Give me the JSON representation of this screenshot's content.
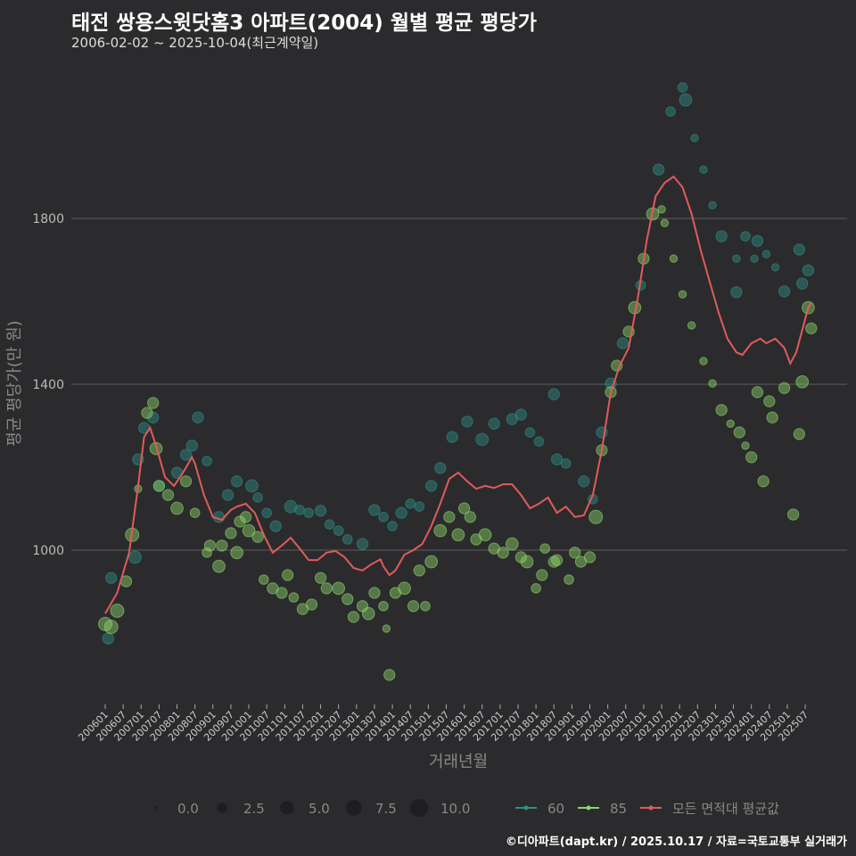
{
  "chart_data": {
    "type": "scatter",
    "title": "태전 쌍용스윗닷홈3 아파트(2004) 월별 평균 평당가",
    "subtitle": "2006-02-02 ~ 2025-10-04(최근계약일)",
    "xlabel": "거래년월",
    "ylabel": "평균 평당가(만 원)",
    "x_unit": "months since 2006-01",
    "xlim": [
      -10,
      248
    ],
    "ylim": [
      620,
      2160
    ],
    "yticks": [
      1000,
      1400,
      1800
    ],
    "ytick_labels": [
      "1000",
      "1400",
      "1800"
    ],
    "xtick_labels": [
      "200601",
      "200607",
      "200701",
      "200707",
      "200801",
      "200807",
      "200901",
      "200907",
      "201001",
      "201007",
      "201101",
      "201107",
      "201201",
      "201207",
      "201301",
      "201307",
      "201401",
      "201407",
      "201501",
      "201507",
      "201601",
      "201607",
      "201701",
      "201707",
      "201801",
      "201807",
      "201901",
      "201907",
      "202001",
      "202007",
      "202101",
      "202107",
      "202201",
      "202207",
      "202301",
      "202307",
      "202401",
      "202407",
      "202501",
      "202507"
    ],
    "grid": true,
    "size_legend": {
      "values": [
        0.0,
        2.5,
        5.0,
        7.5,
        10.0
      ],
      "labels": [
        "0.0",
        "2.5",
        "5.0",
        "7.5",
        "10.0"
      ]
    },
    "series": [
      {
        "name": "60",
        "color": "#2f8f86",
        "points": [
          [
            1,
            787,
            3
          ],
          [
            2,
            933,
            3
          ],
          [
            10,
            983,
            4
          ],
          [
            11,
            1219,
            3
          ],
          [
            13,
            1295,
            3
          ],
          [
            16,
            1320,
            3
          ],
          [
            18,
            1155,
            3
          ],
          [
            24,
            1187,
            3
          ],
          [
            27,
            1230,
            3
          ],
          [
            29,
            1252,
            3
          ],
          [
            31,
            1320,
            3
          ],
          [
            34,
            1215,
            2
          ],
          [
            38,
            1080,
            3
          ],
          [
            41,
            1133,
            3
          ],
          [
            44,
            1166,
            3
          ],
          [
            49,
            1155,
            4
          ],
          [
            51,
            1127,
            2
          ],
          [
            54,
            1090,
            2
          ],
          [
            57,
            1058,
            3
          ],
          [
            62,
            1105,
            4
          ],
          [
            65,
            1097,
            2
          ],
          [
            68,
            1090,
            2
          ],
          [
            72,
            1095,
            3
          ],
          [
            75,
            1062,
            2
          ],
          [
            78,
            1047,
            2
          ],
          [
            81,
            1026,
            2
          ],
          [
            86,
            1015,
            3
          ],
          [
            90,
            1097,
            3
          ],
          [
            93,
            1080,
            2
          ],
          [
            96,
            1058,
            2
          ],
          [
            99,
            1090,
            3
          ],
          [
            102,
            1112,
            2
          ],
          [
            105,
            1105,
            2
          ],
          [
            109,
            1155,
            3
          ],
          [
            112,
            1198,
            3
          ],
          [
            116,
            1273,
            3
          ],
          [
            121,
            1310,
            3
          ],
          [
            126,
            1267,
            4
          ],
          [
            130,
            1305,
            3
          ],
          [
            136,
            1316,
            3
          ],
          [
            139,
            1327,
            3
          ],
          [
            142,
            1284,
            2
          ],
          [
            145,
            1262,
            2
          ],
          [
            150,
            1376,
            3
          ],
          [
            151,
            1219,
            3
          ],
          [
            154,
            1209,
            2
          ],
          [
            160,
            1166,
            3
          ],
          [
            163,
            1123,
            2
          ],
          [
            166,
            1284,
            3
          ],
          [
            169,
            1402,
            3
          ],
          [
            173,
            1499,
            3
          ],
          [
            179,
            1639,
            2
          ],
          [
            185,
            1918,
            3
          ],
          [
            189,
            2058,
            2
          ],
          [
            193,
            2116,
            2
          ],
          [
            194,
            2086,
            4
          ],
          [
            197,
            1994,
            1
          ],
          [
            200,
            1918,
            1
          ],
          [
            203,
            1832,
            1
          ],
          [
            206,
            1757,
            3
          ],
          [
            211,
            1703,
            1
          ],
          [
            211,
            1622,
            3
          ],
          [
            214,
            1757,
            2
          ],
          [
            217,
            1703,
            1
          ],
          [
            218,
            1746,
            3
          ],
          [
            221,
            1714,
            1
          ],
          [
            224,
            1682,
            1
          ],
          [
            227,
            1624,
            3
          ],
          [
            232,
            1725,
            3
          ],
          [
            233,
            1643,
            3
          ],
          [
            235,
            1675,
            3
          ]
        ]
      },
      {
        "name": "85",
        "color": "#8ed46b",
        "points": [
          [
            0,
            822,
            5
          ],
          [
            2,
            815,
            5
          ],
          [
            4,
            854,
            5
          ],
          [
            7,
            925,
            3
          ],
          [
            9,
            1037,
            5
          ],
          [
            11,
            1148,
            1
          ],
          [
            14,
            1331,
            3
          ],
          [
            16,
            1355,
            3
          ],
          [
            17,
            1245,
            4
          ],
          [
            18,
            1155,
            3
          ],
          [
            21,
            1133,
            3
          ],
          [
            24,
            1101,
            4
          ],
          [
            27,
            1166,
            3
          ],
          [
            30,
            1090,
            2
          ],
          [
            34,
            994,
            2
          ],
          [
            35,
            1011,
            3
          ],
          [
            38,
            961,
            4
          ],
          [
            39,
            1011,
            3
          ],
          [
            42,
            1041,
            3
          ],
          [
            44,
            994,
            4
          ],
          [
            45,
            1069,
            3
          ],
          [
            47,
            1080,
            3
          ],
          [
            48,
            1047,
            4
          ],
          [
            51,
            1032,
            3
          ],
          [
            53,
            929,
            2
          ],
          [
            56,
            908,
            3
          ],
          [
            59,
            897,
            3
          ],
          [
            61,
            940,
            3
          ],
          [
            63,
            886,
            2
          ],
          [
            66,
            858,
            3
          ],
          [
            69,
            869,
            3
          ],
          [
            72,
            933,
            3
          ],
          [
            74,
            908,
            3
          ],
          [
            78,
            908,
            4
          ],
          [
            81,
            882,
            3
          ],
          [
            83,
            839,
            3
          ],
          [
            86,
            865,
            3
          ],
          [
            88,
            847,
            4
          ],
          [
            90,
            897,
            3
          ],
          [
            93,
            865,
            2
          ],
          [
            94,
            811,
            1
          ],
          [
            95,
            699,
            3
          ],
          [
            97,
            897,
            3
          ],
          [
            100,
            908,
            4
          ],
          [
            103,
            865,
            3
          ],
          [
            105,
            951,
            3
          ],
          [
            107,
            865,
            2
          ],
          [
            109,
            972,
            4
          ],
          [
            112,
            1047,
            4
          ],
          [
            115,
            1080,
            3
          ],
          [
            118,
            1037,
            4
          ],
          [
            120,
            1101,
            3
          ],
          [
            122,
            1080,
            3
          ],
          [
            124,
            1026,
            3
          ],
          [
            127,
            1037,
            4
          ],
          [
            130,
            1004,
            3
          ],
          [
            133,
            994,
            3
          ],
          [
            136,
            1015,
            4
          ],
          [
            139,
            983,
            3
          ],
          [
            141,
            972,
            4
          ],
          [
            144,
            908,
            2
          ],
          [
            146,
            940,
            3
          ],
          [
            147,
            1004,
            2
          ],
          [
            150,
            972,
            3
          ],
          [
            151,
            976,
            3
          ],
          [
            155,
            929,
            2
          ],
          [
            157,
            994,
            3
          ],
          [
            159,
            972,
            3
          ],
          [
            162,
            983,
            3
          ],
          [
            164,
            1080,
            5
          ],
          [
            166,
            1241,
            3
          ],
          [
            169,
            1381,
            3
          ],
          [
            171,
            1445,
            3
          ],
          [
            175,
            1527,
            3
          ],
          [
            177,
            1585,
            4
          ],
          [
            180,
            1703,
            3
          ],
          [
            183,
            1811,
            4
          ],
          [
            186,
            1822,
            1
          ],
          [
            187,
            1789,
            1
          ],
          [
            190,
            1703,
            1
          ],
          [
            193,
            1617,
            1
          ],
          [
            196,
            1542,
            1
          ],
          [
            200,
            1456,
            1
          ],
          [
            203,
            1402,
            1
          ],
          [
            206,
            1338,
            3
          ],
          [
            209,
            1305,
            1
          ],
          [
            212,
            1284,
            3
          ],
          [
            214,
            1252,
            1
          ],
          [
            216,
            1224,
            3
          ],
          [
            218,
            1381,
            3
          ],
          [
            220,
            1166,
            3
          ],
          [
            222,
            1359,
            3
          ],
          [
            223,
            1320,
            3
          ],
          [
            227,
            1391,
            3
          ],
          [
            230,
            1086,
            3
          ],
          [
            232,
            1280,
            3
          ],
          [
            233,
            1406,
            4
          ],
          [
            235,
            1585,
            4
          ],
          [
            236,
            1535,
            3
          ]
        ]
      },
      {
        "name": "모든 면적대 평균값",
        "color": "#e05b5b",
        "type": "line",
        "points": [
          [
            0,
            847
          ],
          [
            4,
            897
          ],
          [
            8,
            994
          ],
          [
            11,
            1155
          ],
          [
            13,
            1273
          ],
          [
            15,
            1295
          ],
          [
            17,
            1252
          ],
          [
            20,
            1176
          ],
          [
            23,
            1155
          ],
          [
            26,
            1187
          ],
          [
            29,
            1224
          ],
          [
            30,
            1209
          ],
          [
            33,
            1133
          ],
          [
            36,
            1080
          ],
          [
            39,
            1073
          ],
          [
            42,
            1097
          ],
          [
            44,
            1105
          ],
          [
            47,
            1112
          ],
          [
            50,
            1090
          ],
          [
            53,
            1037
          ],
          [
            56,
            994
          ],
          [
            59,
            1011
          ],
          [
            62,
            1030
          ],
          [
            65,
            1004
          ],
          [
            68,
            976
          ],
          [
            71,
            976
          ],
          [
            74,
            994
          ],
          [
            77,
            998
          ],
          [
            80,
            983
          ],
          [
            83,
            957
          ],
          [
            86,
            951
          ],
          [
            89,
            966
          ],
          [
            92,
            978
          ],
          [
            93,
            961
          ],
          [
            95,
            940
          ],
          [
            97,
            951
          ],
          [
            100,
            989
          ],
          [
            103,
            1000
          ],
          [
            106,
            1015
          ],
          [
            109,
            1058
          ],
          [
            112,
            1112
          ],
          [
            115,
            1172
          ],
          [
            118,
            1187
          ],
          [
            121,
            1166
          ],
          [
            124,
            1148
          ],
          [
            127,
            1155
          ],
          [
            130,
            1150
          ],
          [
            133,
            1159
          ],
          [
            136,
            1159
          ],
          [
            139,
            1133
          ],
          [
            142,
            1101
          ],
          [
            145,
            1112
          ],
          [
            148,
            1127
          ],
          [
            151,
            1090
          ],
          [
            154,
            1105
          ],
          [
            157,
            1080
          ],
          [
            160,
            1084
          ],
          [
            163,
            1133
          ],
          [
            166,
            1241
          ],
          [
            169,
            1381
          ],
          [
            172,
            1445
          ],
          [
            175,
            1488
          ],
          [
            178,
            1606
          ],
          [
            181,
            1746
          ],
          [
            184,
            1854
          ],
          [
            187,
            1886
          ],
          [
            190,
            1901
          ],
          [
            193,
            1875
          ],
          [
            196,
            1811
          ],
          [
            199,
            1725
          ],
          [
            202,
            1649
          ],
          [
            205,
            1574
          ],
          [
            208,
            1510
          ],
          [
            211,
            1477
          ],
          [
            213,
            1471
          ],
          [
            216,
            1499
          ],
          [
            219,
            1510
          ],
          [
            221,
            1499
          ],
          [
            224,
            1510
          ],
          [
            227,
            1488
          ],
          [
            229,
            1450
          ],
          [
            231,
            1477
          ],
          [
            235,
            1585
          ],
          [
            236,
            1596
          ]
        ]
      }
    ]
  },
  "footer": "©디아파트(dapt.kr) / 2025.10.17 / 자료=국토교통부 실거래가"
}
